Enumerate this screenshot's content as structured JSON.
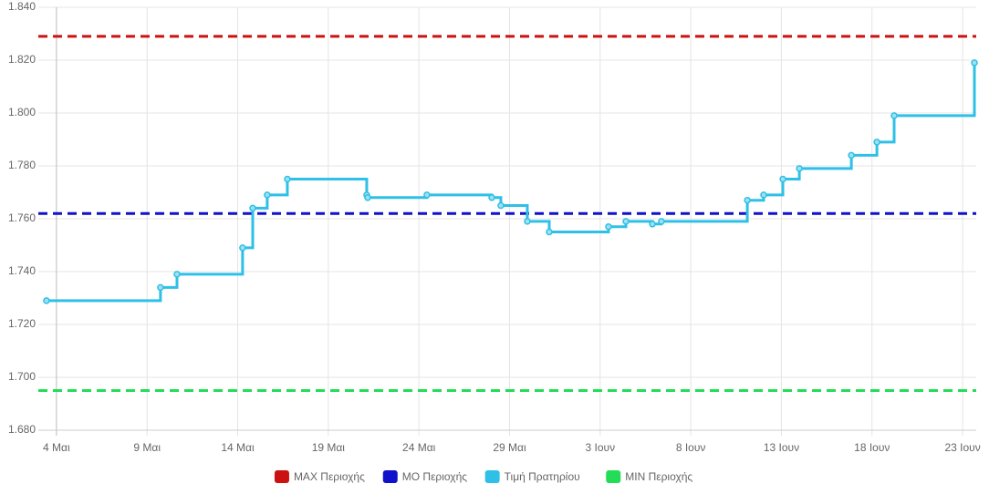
{
  "chart_data": {
    "type": "step",
    "series": [
      {
        "name": "MAX Περιοχής",
        "color": "#cc1111",
        "line": "dashed",
        "values": [
          1.829
        ]
      },
      {
        "name": "MO Περιοχής",
        "color": "#1111cc",
        "line": "dashed",
        "values": [
          1.762
        ]
      },
      {
        "name": "Τιμή Πρατηρίου",
        "color": "#2ec0e6",
        "line": "solid",
        "x": [
          -0.55,
          5.74,
          6.65,
          10.27,
          10.83,
          11.63,
          12.74,
          17.12,
          17.17,
          20.44,
          24.02,
          24.52,
          25.98,
          27.19,
          30.46,
          31.42,
          32.88,
          33.38,
          38.12,
          39.02,
          40.08,
          40.99,
          43.86,
          45.27,
          46.22,
          50.65
        ],
        "values": [
          1.729,
          1.734,
          1.739,
          1.749,
          1.764,
          1.769,
          1.775,
          1.769,
          1.768,
          1.769,
          1.768,
          1.765,
          1.759,
          1.755,
          1.757,
          1.759,
          1.758,
          1.759,
          1.767,
          1.769,
          1.775,
          1.779,
          1.784,
          1.789,
          1.799,
          1.819
        ]
      },
      {
        "name": "MIN Περιοχής",
        "color": "#22dd55",
        "line": "dashed",
        "values": [
          1.695
        ]
      }
    ],
    "xlim": [
      -1,
      50.75
    ],
    "xticks": [
      {
        "value": 0,
        "label": "4 Μαι"
      },
      {
        "value": 5,
        "label": "9 Μαι"
      },
      {
        "value": 10,
        "label": "14 Μαι"
      },
      {
        "value": 15,
        "label": "19 Μαι"
      },
      {
        "value": 20,
        "label": "24 Μαι"
      },
      {
        "value": 25,
        "label": "29 Μαι"
      },
      {
        "value": 30,
        "label": "3 Ιουν"
      },
      {
        "value": 35,
        "label": "8 Ιουν"
      },
      {
        "value": 40,
        "label": "13 Ιουν"
      },
      {
        "value": 45,
        "label": "18 Ιουν"
      },
      {
        "value": 50,
        "label": "23 Ιουν"
      }
    ],
    "ylim": [
      1.68,
      1.84
    ],
    "yticks": [
      {
        "value": 1.68,
        "label": "1.680"
      },
      {
        "value": 1.7,
        "label": "1.700"
      },
      {
        "value": 1.72,
        "label": "1.720"
      },
      {
        "value": 1.74,
        "label": "1.740"
      },
      {
        "value": 1.76,
        "label": "1.760"
      },
      {
        "value": 1.78,
        "label": "1.780"
      },
      {
        "value": 1.8,
        "label": "1.800"
      },
      {
        "value": 1.82,
        "label": "1.820"
      },
      {
        "value": 1.84,
        "label": "1.840"
      }
    ],
    "grid": true,
    "legend": "bottom"
  }
}
